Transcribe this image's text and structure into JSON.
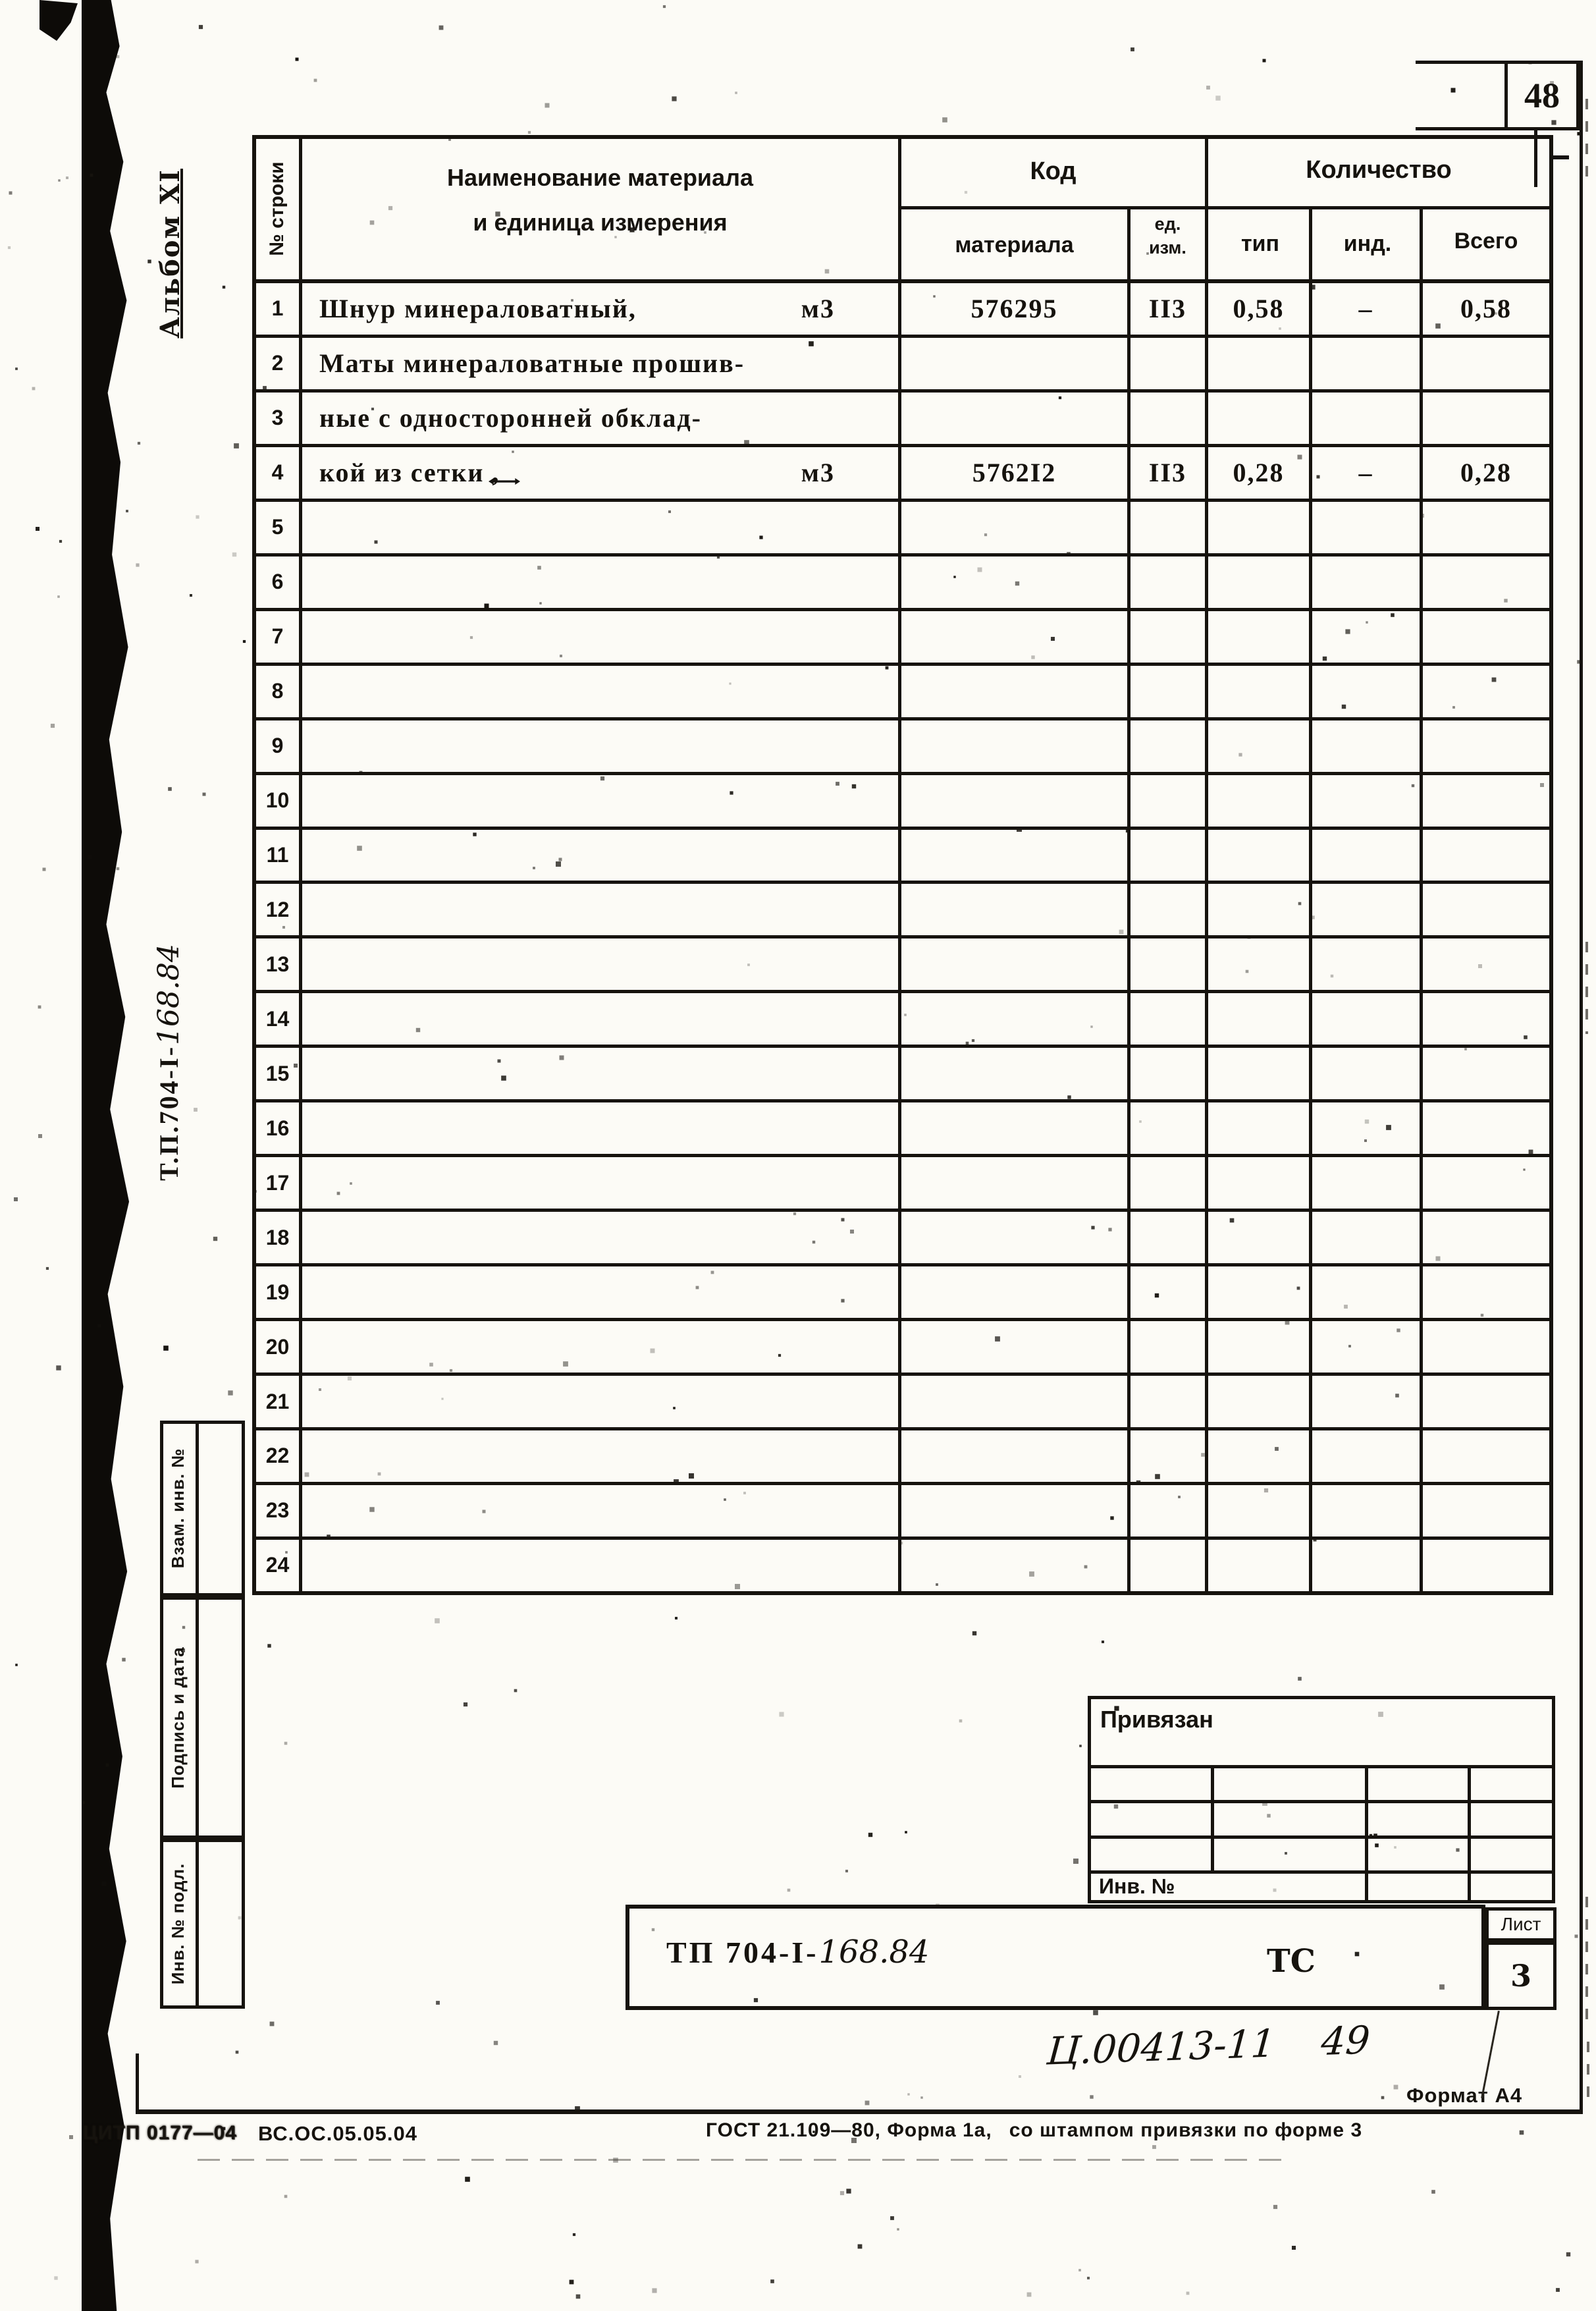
{
  "page": {
    "number": "48",
    "format": "Формат А4"
  },
  "side_margin": {
    "album": "Альбом XI",
    "doc_code_typed": "Т.П.704-I-",
    "doc_code_hand": "168.84",
    "stamps": [
      {
        "label": "Взам. инв. №"
      },
      {
        "label": "Подпись и дата"
      },
      {
        "label": "Инв. № подл."
      }
    ]
  },
  "table": {
    "col_headers": {
      "row_no": "№ строки",
      "name_line1": "Наименование материала",
      "name_line2": "и единица измерения",
      "code_group": "Код",
      "code_material": "материала",
      "unit_line1": "ед.",
      "unit_line2": "изм.",
      "qty_group": "Количество",
      "qty_type": "тип",
      "qty_ind": "инд.",
      "qty_total": "Всего"
    },
    "rows": [
      {
        "no": "1",
        "name": "Шнур минераловатный,",
        "unit": "м3",
        "code": "576295",
        "unit_code": "II3",
        "qty_type": "0,58",
        "qty_ind": "–",
        "qty_total": "0,58"
      },
      {
        "no": "2",
        "name": "Маты минераловатные прошив-",
        "unit": "",
        "code": "",
        "unit_code": "",
        "qty_type": "",
        "qty_ind": "",
        "qty_total": ""
      },
      {
        "no": "3",
        "name": "ные с односторонней обклад-",
        "unit": "",
        "code": "",
        "unit_code": "",
        "qty_type": "",
        "qty_ind": "",
        "qty_total": ""
      },
      {
        "no": "4",
        "name": "кой из сетки ,",
        "unit": "м3",
        "code": "5762I2",
        "unit_code": "II3",
        "qty_type": "0,28",
        "qty_ind": "–",
        "qty_total": "0,28"
      },
      {
        "no": "5",
        "name": "",
        "unit": "",
        "code": "",
        "unit_code": "",
        "qty_type": "",
        "qty_ind": "",
        "qty_total": ""
      },
      {
        "no": "6",
        "name": "",
        "unit": "",
        "code": "",
        "unit_code": "",
        "qty_type": "",
        "qty_ind": "",
        "qty_total": ""
      },
      {
        "no": "7",
        "name": "",
        "unit": "",
        "code": "",
        "unit_code": "",
        "qty_type": "",
        "qty_ind": "",
        "qty_total": ""
      },
      {
        "no": "8",
        "name": "",
        "unit": "",
        "code": "",
        "unit_code": "",
        "qty_type": "",
        "qty_ind": "",
        "qty_total": ""
      },
      {
        "no": "9",
        "name": "",
        "unit": "",
        "code": "",
        "unit_code": "",
        "qty_type": "",
        "qty_ind": "",
        "qty_total": ""
      },
      {
        "no": "10",
        "name": "",
        "unit": "",
        "code": "",
        "unit_code": "",
        "qty_type": "",
        "qty_ind": "",
        "qty_total": ""
      },
      {
        "no": "11",
        "name": "",
        "unit": "",
        "code": "",
        "unit_code": "",
        "qty_type": "",
        "qty_ind": "",
        "qty_total": ""
      },
      {
        "no": "12",
        "name": "",
        "unit": "",
        "code": "",
        "unit_code": "",
        "qty_type": "",
        "qty_ind": "",
        "qty_total": ""
      },
      {
        "no": "13",
        "name": "",
        "unit": "",
        "code": "",
        "unit_code": "",
        "qty_type": "",
        "qty_ind": "",
        "qty_total": ""
      },
      {
        "no": "14",
        "name": "",
        "unit": "",
        "code": "",
        "unit_code": "",
        "qty_type": "",
        "qty_ind": "",
        "qty_total": ""
      },
      {
        "no": "15",
        "name": "",
        "unit": "",
        "code": "",
        "unit_code": "",
        "qty_type": "",
        "qty_ind": "",
        "qty_total": ""
      },
      {
        "no": "16",
        "name": "",
        "unit": "",
        "code": "",
        "unit_code": "",
        "qty_type": "",
        "qty_ind": "",
        "qty_total": ""
      },
      {
        "no": "17",
        "name": "",
        "unit": "",
        "code": "",
        "unit_code": "",
        "qty_type": "",
        "qty_ind": "",
        "qty_total": ""
      },
      {
        "no": "18",
        "name": "",
        "unit": "",
        "code": "",
        "unit_code": "",
        "qty_type": "",
        "qty_ind": "",
        "qty_total": ""
      },
      {
        "no": "19",
        "name": "",
        "unit": "",
        "code": "",
        "unit_code": "",
        "qty_type": "",
        "qty_ind": "",
        "qty_total": ""
      },
      {
        "no": "20",
        "name": "",
        "unit": "",
        "code": "",
        "unit_code": "",
        "qty_type": "",
        "qty_ind": "",
        "qty_total": ""
      },
      {
        "no": "21",
        "name": "",
        "unit": "",
        "code": "",
        "unit_code": "",
        "qty_type": "",
        "qty_ind": "",
        "qty_total": ""
      },
      {
        "no": "22",
        "name": "",
        "unit": "",
        "code": "",
        "unit_code": "",
        "qty_type": "",
        "qty_ind": "",
        "qty_total": ""
      },
      {
        "no": "23",
        "name": "",
        "unit": "",
        "code": "",
        "unit_code": "",
        "qty_type": "",
        "qty_ind": "",
        "qty_total": ""
      },
      {
        "no": "24",
        "name": "",
        "unit": "",
        "code": "",
        "unit_code": "",
        "qty_type": "",
        "qty_ind": "",
        "qty_total": ""
      }
    ]
  },
  "binding_block": {
    "title": "Привязан",
    "inv_label": "Инв. №"
  },
  "title_block": {
    "doc_code_typed": "ТП 704-I-",
    "doc_code_hand": "168.84",
    "stage": "ТС",
    "sheet_label": "Лист",
    "sheet_number": "3"
  },
  "handwritten": {
    "inventory": "Ц.00413-11",
    "extra": "49"
  },
  "footer": {
    "org_code": "ЦИТП 0177—04",
    "doc_ref": "ВС.ОС.05.05.04",
    "gost": "ГОСТ 21.109—80, Форма 1а,",
    "gost2": "со штампом привязки по форме 3"
  }
}
